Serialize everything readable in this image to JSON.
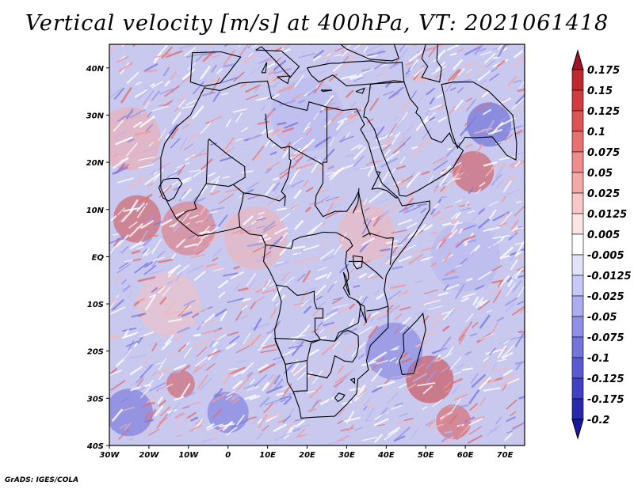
{
  "title": "Vertical velocity [m/s] at 400hPa, VT: 2021061418",
  "footer": "GrADS: IGES/COLA",
  "map": {
    "projection": "latlon",
    "lon_range": [
      -30,
      75
    ],
    "lat_range": [
      -40,
      45
    ],
    "lon_ticks": [
      {
        "value": -30,
        "label": "30W"
      },
      {
        "value": -20,
        "label": "20W"
      },
      {
        "value": -10,
        "label": "10W"
      },
      {
        "value": 0,
        "label": "0"
      },
      {
        "value": 10,
        "label": "10E"
      },
      {
        "value": 20,
        "label": "20E"
      },
      {
        "value": 30,
        "label": "30E"
      },
      {
        "value": 40,
        "label": "40E"
      },
      {
        "value": 50,
        "label": "50E"
      },
      {
        "value": 60,
        "label": "60E"
      },
      {
        "value": 70,
        "label": "70E"
      }
    ],
    "lat_ticks": [
      {
        "value": 40,
        "label": "40N"
      },
      {
        "value": 30,
        "label": "30N"
      },
      {
        "value": 20,
        "label": "20N"
      },
      {
        "value": 10,
        "label": "10N"
      },
      {
        "value": 0,
        "label": "EQ"
      },
      {
        "value": -10,
        "label": "10S"
      },
      {
        "value": -20,
        "label": "20S"
      },
      {
        "value": -30,
        "label": "30S"
      },
      {
        "value": -40,
        "label": "40S"
      }
    ]
  },
  "colorbar": {
    "labels": [
      "0.175",
      "0.15",
      "0.125",
      "0.1",
      "0.075",
      "0.05",
      "0.025",
      "0.0125",
      "0.005",
      "-0.005",
      "-0.0125",
      "-0.025",
      "-0.05",
      "-0.075",
      "-0.1",
      "-0.125",
      "-0.175",
      "-0.2"
    ],
    "colors": [
      "#a0142a",
      "#be2830",
      "#d13c40",
      "#de5454",
      "#e87070",
      "#ef8c8c",
      "#f4a8a8",
      "#f8c8c8",
      "#fbe4e4",
      "#ffffff",
      "#e2e2fb",
      "#c8c8f6",
      "#acacf0",
      "#9090e8",
      "#7474de",
      "#5a5ad2",
      "#4040c2",
      "#2828ac",
      "#1818a0"
    ]
  }
}
